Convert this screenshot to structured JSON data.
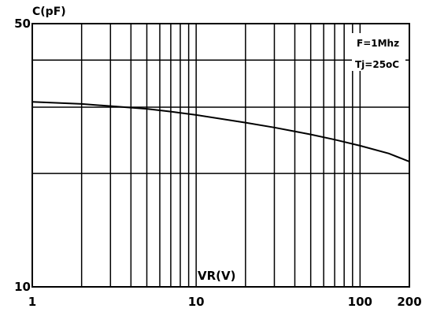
{
  "chart_data": {
    "type": "line",
    "title": "",
    "xlabel": "VR(V)",
    "ylabel": "C(pF)",
    "x_scale": "log",
    "y_scale": "log",
    "xlim": [
      1,
      200
    ],
    "ylim": [
      10,
      50
    ],
    "x_tick_labels": [
      "1",
      "10",
      "100",
      "200"
    ],
    "y_tick_labels": [
      "10",
      "50"
    ],
    "x_grid_values": [
      2,
      3,
      4,
      5,
      6,
      7,
      8,
      9,
      10,
      20,
      30,
      40,
      50,
      60,
      70,
      80,
      90,
      100
    ],
    "y_grid_values": [
      20,
      30,
      40
    ],
    "grid": true,
    "annotations": [
      "F=1Mhz",
      "Tj=25oC"
    ],
    "series": [
      {
        "x": [
          1,
          2,
          3,
          5,
          7,
          10,
          20,
          30,
          50,
          70,
          100,
          150,
          200
        ],
        "values": [
          31,
          30.6,
          30.2,
          29.7,
          29.2,
          28.6,
          27.3,
          26.5,
          25.4,
          24.6,
          23.7,
          22.6,
          21.5
        ]
      }
    ]
  }
}
